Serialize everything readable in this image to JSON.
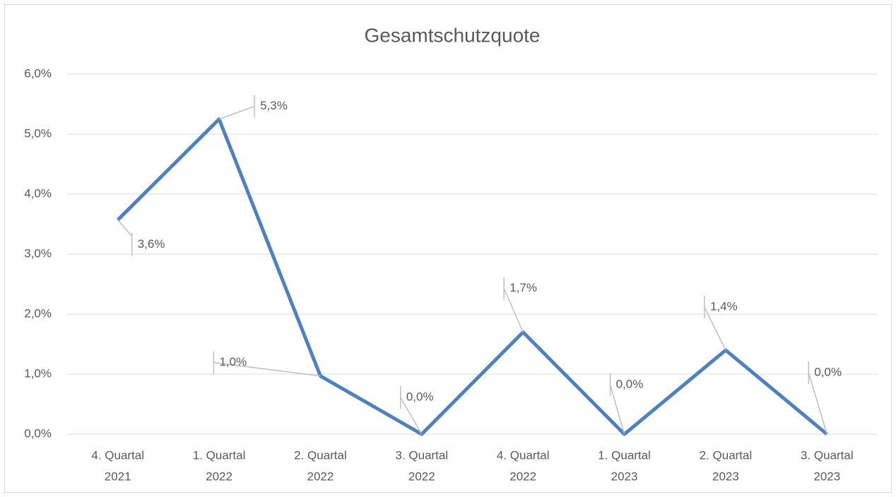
{
  "chart_data": {
    "type": "line",
    "title": "Gesamtschutzquote",
    "categories": [
      [
        "4. Quartal",
        "2021"
      ],
      [
        "1. Quartal",
        "2022"
      ],
      [
        "2. Quartal",
        "2022"
      ],
      [
        "3. Quartal",
        "2022"
      ],
      [
        "4. Quartal",
        "2022"
      ],
      [
        "1. Quartal",
        "2023"
      ],
      [
        "2. Quartal",
        "2023"
      ],
      [
        "3. Quartal",
        "2023"
      ]
    ],
    "series": [
      {
        "color": "#4f81bd",
        "values": [
          3.57,
          5.25,
          0.97,
          0,
          1.7,
          0,
          1.4,
          0
        ],
        "value_labels": [
          "3,6%",
          "5,3%",
          "1,0%",
          "0,0%",
          "1,7%",
          "0,0%",
          "1,4%",
          "0,0%"
        ]
      }
    ],
    "ylim": [
      0,
      6
    ],
    "yticks": [
      {
        "value": 0,
        "label": "0,0%"
      },
      {
        "value": 1,
        "label": "1,0%"
      },
      {
        "value": 2,
        "label": "2,0%"
      },
      {
        "value": 3,
        "label": "3,0%"
      },
      {
        "value": 4,
        "label": "4,0%"
      },
      {
        "value": 5,
        "label": "5,0%"
      },
      {
        "value": 6,
        "label": "6,0%"
      }
    ],
    "grid": true
  }
}
